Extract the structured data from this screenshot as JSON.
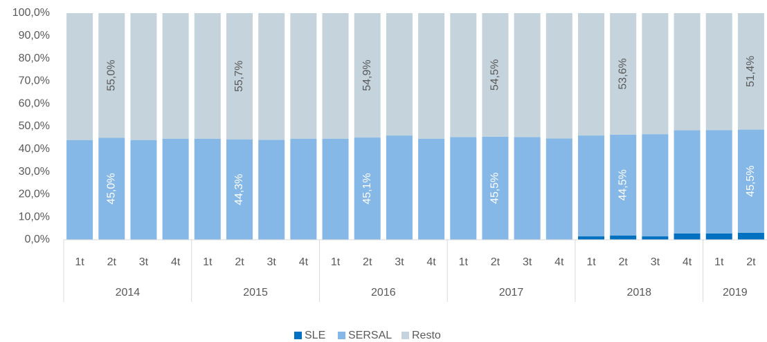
{
  "chart_data": {
    "type": "stacked_bar",
    "categories": [
      "1t",
      "2t",
      "3t",
      "4t",
      "1t",
      "2t",
      "3t",
      "4t",
      "1t",
      "2t",
      "3t",
      "4t",
      "1t",
      "2t",
      "3t",
      "4t",
      "1t",
      "2t",
      "3t",
      "4t",
      "1t",
      "2t"
    ],
    "groups": [
      {
        "name": "2014",
        "count": 4
      },
      {
        "name": "2015",
        "count": 4
      },
      {
        "name": "2016",
        "count": 4
      },
      {
        "name": "2017",
        "count": 4
      },
      {
        "name": "2018",
        "count": 4
      },
      {
        "name": "2019",
        "count": 2
      }
    ],
    "series": [
      {
        "name": "SLE",
        "color": "#0070c0",
        "label_color": "#ffffff",
        "values": [
          0,
          0,
          0,
          0,
          0,
          0,
          0,
          0,
          0,
          0,
          0,
          0,
          0,
          0,
          0,
          0,
          1.5,
          1.9,
          1.5,
          2.8,
          2.8,
          3.1
        ]
      },
      {
        "name": "SERSAL",
        "color": "#85b8e6",
        "label_color": "#ffffff",
        "values": [
          44,
          45.0,
          44,
          44.6,
          44.6,
          44.3,
          44.1,
          44.6,
          44.6,
          45.1,
          46,
          44.6,
          45.3,
          45.5,
          45.3,
          44.7,
          44.5,
          44.5,
          45.1,
          45.5,
          45.6,
          45.5
        ],
        "value_labels": [
          null,
          "45,0%",
          null,
          null,
          null,
          "44,3%",
          null,
          null,
          null,
          "45,1%",
          null,
          null,
          null,
          "45,5%",
          null,
          null,
          null,
          "44,5%",
          null,
          null,
          null,
          "45,5%"
        ]
      },
      {
        "name": "Resto",
        "color": "#c5d3dc",
        "label_color": "#595959",
        "values": [
          56,
          55.0,
          56,
          55.4,
          55.4,
          55.7,
          55.9,
          55.4,
          55.4,
          54.9,
          54,
          55.4,
          54.7,
          54.5,
          54.7,
          55.3,
          54,
          53.6,
          53.4,
          51.7,
          51.6,
          51.4
        ],
        "value_labels": [
          null,
          "55,0%",
          null,
          null,
          null,
          "55,7%",
          null,
          null,
          null,
          "54,9%",
          null,
          null,
          null,
          "54,5%",
          null,
          null,
          null,
          "53,6%",
          null,
          null,
          null,
          "51,4%"
        ]
      }
    ],
    "ylim": [
      0,
      100
    ],
    "yticks": [
      {
        "value": 0,
        "label": "0,0%"
      },
      {
        "value": 10,
        "label": "10,0%"
      },
      {
        "value": 20,
        "label": "20,0%"
      },
      {
        "value": 30,
        "label": "30,0%"
      },
      {
        "value": 40,
        "label": "40,0%"
      },
      {
        "value": 50,
        "label": "50,0%"
      },
      {
        "value": 60,
        "label": "60,0%"
      },
      {
        "value": 70,
        "label": "70,0%"
      },
      {
        "value": 80,
        "label": "80,0%"
      },
      {
        "value": 90,
        "label": "90,0%"
      },
      {
        "value": 100,
        "label": "100,0%"
      }
    ],
    "legend": "bottom"
  }
}
